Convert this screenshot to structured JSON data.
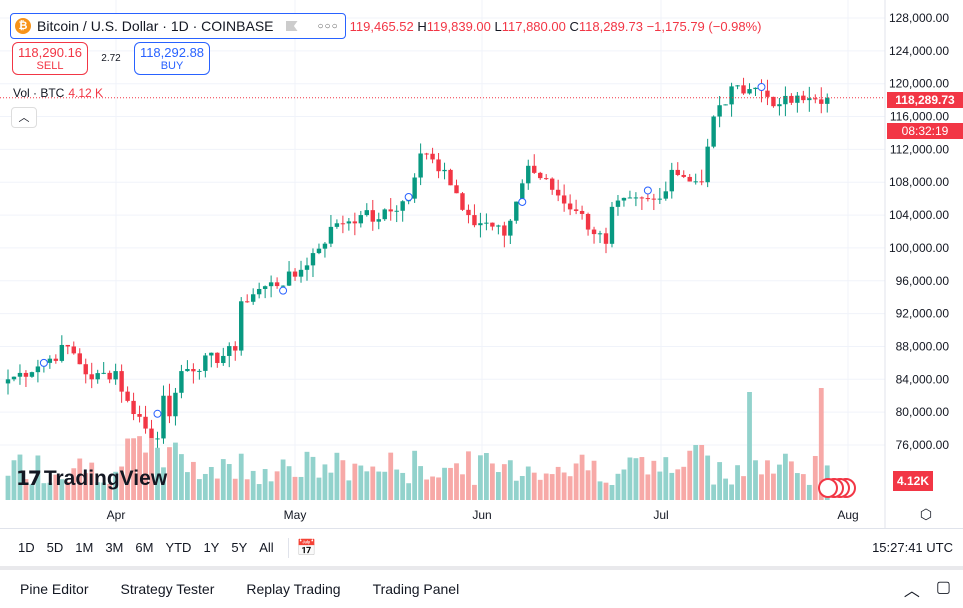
{
  "symbol": {
    "title": "Bitcoin / U.S. Dollar · 1D · COINBASE",
    "icon": "bitcoin-icon"
  },
  "ohlc": {
    "open": "119,465.52",
    "high_label": "H",
    "high": "119,839.00",
    "low_label": "L",
    "low": "117,880.00",
    "close_label": "C",
    "close": "118,289.73",
    "change": "−1,175.79 (−0.98%)"
  },
  "trade": {
    "sell_price": "118,290.16",
    "sell_label": "SELL",
    "spread": "2.72",
    "buy_price": "118,292.88",
    "buy_label": "BUY"
  },
  "volume": {
    "label": "Vol · BTC",
    "value": "4.12 K",
    "badge": "4.12K"
  },
  "price_axis": {
    "ticks": [
      "128,000.00",
      "124,000.00",
      "120,000.00",
      "116,000.00",
      "112,000.00",
      "108,000.00",
      "104,000.00",
      "100,000.00",
      "96,000.00",
      "92,000.00",
      "88,000.00",
      "84,000.00",
      "80,000.00",
      "76,000.00"
    ],
    "last_price": "118,289.73",
    "countdown": "08:32:19"
  },
  "time_axis": [
    "Apr",
    "May",
    "Jun",
    "Jul",
    "Aug"
  ],
  "logo": "TradingView",
  "intervals": [
    "1D",
    "5D",
    "1M",
    "3M",
    "6M",
    "YTD",
    "1Y",
    "5Y",
    "All"
  ],
  "clock": "15:27:41 UTC",
  "bottom_tabs": [
    "Pine Editor",
    "Strategy Tester",
    "Replay Trading",
    "Trading Panel"
  ],
  "colors": {
    "up": "#089981",
    "down": "#f23645",
    "vol_up": "#92d2cc",
    "vol_down": "#f7a9a7"
  },
  "chart_data": {
    "type": "candlestick",
    "start": "Mar 14",
    "keypoints": [
      [
        0,
        84000
      ],
      [
        6,
        86000
      ],
      [
        10,
        88000
      ],
      [
        14,
        84000
      ],
      [
        18,
        85000
      ],
      [
        19,
        82500
      ],
      [
        23,
        78000
      ],
      [
        25,
        76800
      ],
      [
        26,
        82000
      ],
      [
        27,
        79500
      ],
      [
        29,
        85000
      ],
      [
        38,
        87500
      ],
      [
        39,
        93500
      ],
      [
        42,
        95000
      ],
      [
        48,
        96500
      ],
      [
        55,
        103000
      ],
      [
        59,
        104000
      ],
      [
        62,
        103500
      ],
      [
        67,
        106000
      ],
      [
        69,
        111500
      ],
      [
        73,
        109500
      ],
      [
        77,
        104000
      ],
      [
        83,
        101500
      ],
      [
        87,
        110000
      ],
      [
        89,
        108500
      ],
      [
        95,
        104500
      ],
      [
        100,
        100500
      ],
      [
        101,
        105000
      ],
      [
        109,
        106000
      ],
      [
        111,
        109500
      ],
      [
        116,
        108000
      ],
      [
        118,
        116000
      ],
      [
        122,
        119800
      ],
      [
        125,
        119500
      ],
      [
        129,
        117500
      ],
      [
        133,
        118000
      ],
      [
        137,
        118290
      ]
    ]
  }
}
